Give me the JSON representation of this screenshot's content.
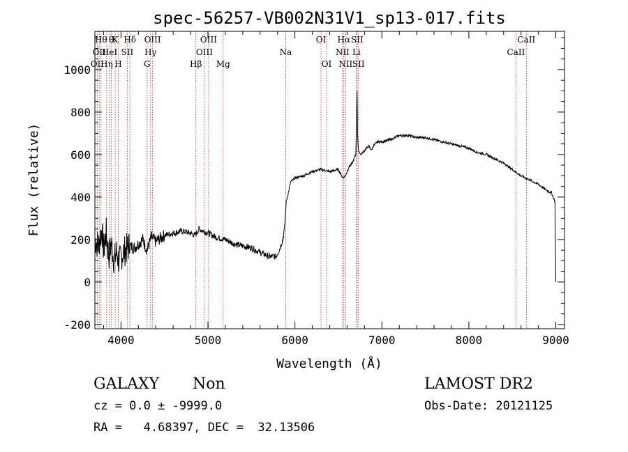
{
  "colors": {
    "line_marker": "#b22222",
    "spectrum": "#000000",
    "axes": "#000000"
  },
  "chart_data": {
    "type": "line",
    "title": "spec-56257-VB002N31V1_sp13-017.fits",
    "xlabel": "Wavelength (Å)",
    "ylabel": "Flux (relative)",
    "xlim": [
      3700,
      9100
    ],
    "ylim": [
      -220,
      1180
    ],
    "xticks": [
      4000,
      5000,
      6000,
      7000,
      8000,
      9000
    ],
    "yticks": [
      -200,
      0,
      200,
      400,
      600,
      800,
      1000
    ],
    "series": [
      {
        "x": [
          3700,
          3740,
          3780,
          3800,
          3830,
          3860,
          3890,
          3920,
          3950,
          3980,
          4010,
          4050,
          4100,
          4150,
          4200,
          4250,
          4300,
          4350,
          4400,
          4500,
          4600,
          4700,
          4800,
          4850,
          4900,
          5000,
          5100,
          5200,
          5300,
          5400,
          5500,
          5600,
          5700,
          5780,
          5820,
          5860,
          5880,
          5900,
          5920,
          5950,
          6000,
          6100,
          6200,
          6300,
          6400,
          6500,
          6550,
          6580,
          6620,
          6660,
          6700,
          6715,
          6720,
          6730,
          6760,
          6800,
          6850,
          6880,
          6900,
          6950,
          7000,
          7100,
          7200,
          7300,
          7400,
          7500,
          7600,
          7700,
          7800,
          7900,
          8000,
          8100,
          8200,
          8300,
          8400,
          8500,
          8600,
          8700,
          8800,
          8900,
          8950,
          8990,
          9000
        ],
        "y": [
          200,
          170,
          250,
          150,
          230,
          120,
          180,
          100,
          140,
          90,
          130,
          150,
          170,
          160,
          180,
          200,
          150,
          210,
          190,
          220,
          230,
          240,
          230,
          220,
          250,
          230,
          210,
          200,
          180,
          170,
          160,
          140,
          120,
          120,
          150,
          200,
          250,
          380,
          410,
          470,
          490,
          500,
          520,
          530,
          520,
          530,
          490,
          500,
          540,
          560,
          600,
          900,
          700,
          620,
          600,
          620,
          640,
          620,
          640,
          660,
          660,
          670,
          690,
          690,
          680,
          680,
          670,
          660,
          650,
          640,
          630,
          610,
          600,
          580,
          560,
          530,
          500,
          480,
          460,
          430,
          420,
          380,
          0
        ]
      }
    ],
    "lines": [
      {
        "x": 3727,
        "label": "OII",
        "row": 2
      },
      {
        "x": 3750,
        "label": "OII",
        "row": 1
      },
      {
        "x": 3770,
        "label": "Hθ",
        "row": 0
      },
      {
        "x": 3835,
        "label": "Hη",
        "row": 2
      },
      {
        "x": 3869,
        "label": "HeI",
        "row": 1
      },
      {
        "x": 3890,
        "label": "θ",
        "row": 0
      },
      {
        "x": 3934,
        "label": "K",
        "row": 0
      },
      {
        "x": 3969,
        "label": "H",
        "row": 2
      },
      {
        "x": 4072,
        "label": "SII",
        "row": 1
      },
      {
        "x": 4102,
        "label": "Hδ",
        "row": 0
      },
      {
        "x": 4300,
        "label": "G",
        "row": 2
      },
      {
        "x": 4340,
        "label": "Hγ",
        "row": 1
      },
      {
        "x": 4363,
        "label": "OIII",
        "row": 0
      },
      {
        "x": 4861,
        "label": "Hβ",
        "row": 2
      },
      {
        "x": 4959,
        "label": "OIII",
        "row": 1
      },
      {
        "x": 5007,
        "label": "OIII",
        "row": 0
      },
      {
        "x": 5175,
        "label": "Mg",
        "row": 2
      },
      {
        "x": 5894,
        "label": "Na",
        "row": 1
      },
      {
        "x": 6300,
        "label": "OI",
        "row": 0
      },
      {
        "x": 6364,
        "label": "OI",
        "row": 2
      },
      {
        "x": 6548,
        "label": "NII",
        "row": 1
      },
      {
        "x": 6563,
        "label": "Hα",
        "row": 0
      },
      {
        "x": 6583,
        "label": "NII",
        "row": 2
      },
      {
        "x": 6716,
        "label": "SII",
        "row": 0
      },
      {
        "x": 6731,
        "label": "SII",
        "row": 2
      },
      {
        "x": 6708,
        "label": "Li",
        "row": 1
      },
      {
        "x": 8542,
        "label": "CaII",
        "row": 1
      },
      {
        "x": 8662,
        "label": "CaII",
        "row": 0
      }
    ]
  },
  "footer": {
    "classification": "GALAXY",
    "subclass": "Non",
    "survey": "LAMOST DR2",
    "cz": "cz = 0.0 ± -9999.0",
    "obs_date": "Obs-Date: 20121125",
    "radec": "RA =   4.68397, DEC =  32.13506"
  }
}
